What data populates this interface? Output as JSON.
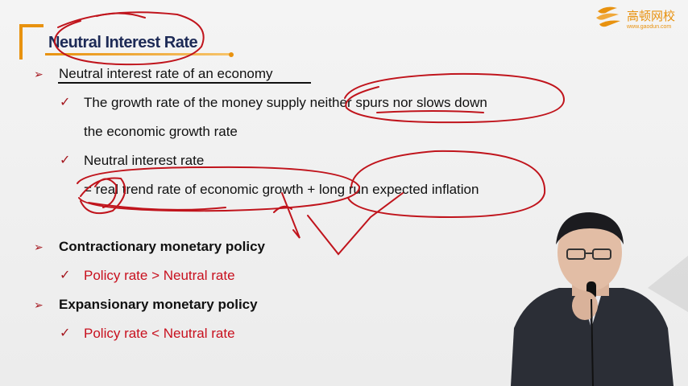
{
  "slide": {
    "title": "Neutral Interest Rate",
    "logo": {
      "text_cn": "高顿网校",
      "url": "www.gaodun.com"
    },
    "bullets": [
      {
        "level": 1,
        "text": "Neutral interest rate of an economy"
      },
      {
        "level": 2,
        "text": "The growth rate of the money supply neither spurs nor slows down"
      },
      {
        "level": 2,
        "text": "the economic growth rate",
        "continuation": true
      },
      {
        "level": 2,
        "text": "Neutral interest rate"
      },
      {
        "level": 2,
        "text": "= real trend rate of economic growth + long run expected inflation",
        "continuation": true
      },
      {
        "level": 1,
        "text": "Contractionary monetary policy"
      },
      {
        "level": 2,
        "text": "Policy rate > Neutral rate"
      },
      {
        "level": 1,
        "text": "Expansionary monetary policy"
      },
      {
        "level": 2,
        "text": "Policy rate < Neutral rate"
      }
    ]
  },
  "icons": {
    "arrow": "arrow-bullet-icon",
    "check": "checkmark-icon"
  },
  "colors": {
    "accent": "#e8920f",
    "title": "#1d2a56",
    "bullet": "#a5171f",
    "policy_text": "#c8101e",
    "ink": "#c0141c"
  }
}
